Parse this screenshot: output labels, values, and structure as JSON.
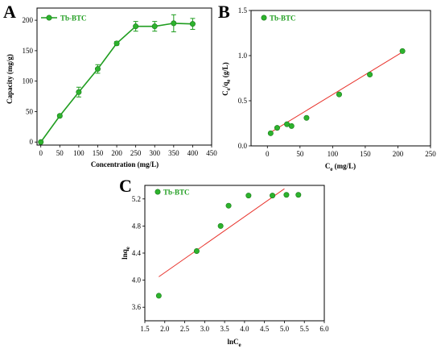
{
  "colors": {
    "accent": "#1f9d1f",
    "marker": "#2db32d",
    "fit": "#e8322b",
    "axis": "#000000"
  },
  "panels": {
    "A": {
      "label": "A",
      "legend": "Tb-BTC",
      "xlabel": "Concentration (mg/L)",
      "ylabel": "Capacity (mg/g)"
    },
    "B": {
      "label": "B",
      "legend": "Tb-BTC",
      "xlabel": [
        "C",
        "e",
        " (mg/L)"
      ],
      "ylabel": [
        "C",
        "e",
        "/q",
        "e",
        " (g/L)"
      ]
    },
    "C": {
      "label": "C",
      "legend": "Tb-BTC",
      "xlabel": [
        "lnC",
        "e"
      ],
      "ylabel": [
        "lnq",
        "e"
      ]
    }
  },
  "chart_data": [
    {
      "type": "line",
      "panel": "A",
      "legend": "Tb-BTC",
      "xlabel": "Concentration (mg/L)",
      "ylabel": "Capacity (mg/g)",
      "xlim": [
        -10,
        450
      ],
      "ylim": [
        -5,
        220
      ],
      "xticks": [
        0,
        50,
        100,
        150,
        200,
        250,
        300,
        350,
        400,
        450
      ],
      "yticks": [
        0,
        50,
        100,
        150,
        200
      ],
      "x": [
        0,
        50,
        100,
        150,
        200,
        250,
        300,
        350,
        400
      ],
      "y": [
        0,
        43,
        82,
        120,
        162,
        190,
        190,
        195,
        194
      ],
      "error": [
        0,
        2,
        8,
        7,
        3,
        8,
        8,
        14,
        9
      ],
      "markers": true
    },
    {
      "type": "scatter",
      "panel": "B",
      "legend": "Tb-BTC",
      "xlabel": "Ce (mg/L)",
      "ylabel": "Ce/qe (g/L)",
      "xlim": [
        -25,
        250
      ],
      "ylim": [
        0,
        1.5
      ],
      "xticks": [
        0,
        50,
        100,
        150,
        200,
        250
      ],
      "yticks": [
        0.0,
        0.5,
        1.0,
        1.5
      ],
      "x": [
        5,
        15,
        30,
        37,
        60,
        110,
        157,
        207
      ],
      "y": [
        0.14,
        0.2,
        0.24,
        0.22,
        0.31,
        0.57,
        0.79,
        1.05
      ],
      "fit": {
        "x": [
          5,
          207
        ],
        "y": [
          0.15,
          1.04
        ]
      }
    },
    {
      "type": "scatter",
      "panel": "C",
      "legend": "Tb-BTC",
      "xlabel": "lnCe",
      "ylabel": "lnqe",
      "xlim": [
        1.5,
        6.0
      ],
      "ylim": [
        3.4,
        5.4
      ],
      "xticks": [
        1.5,
        2.0,
        2.5,
        3.0,
        3.5,
        4.0,
        4.5,
        5.0,
        5.5,
        6.0
      ],
      "yticks": [
        3.6,
        4.0,
        4.4,
        4.8,
        5.2
      ],
      "x": [
        1.85,
        2.8,
        3.4,
        3.6,
        4.1,
        4.7,
        5.05,
        5.35
      ],
      "y": [
        3.77,
        4.43,
        4.8,
        5.1,
        5.25,
        5.25,
        5.26,
        5.26
      ],
      "fit": {
        "x": [
          1.85,
          5.0
        ],
        "y": [
          4.05,
          5.35
        ]
      }
    }
  ]
}
